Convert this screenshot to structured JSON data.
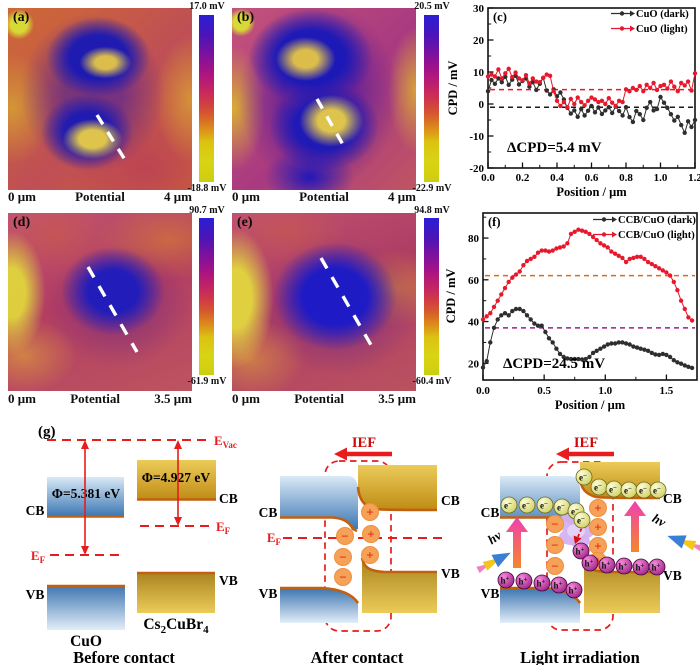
{
  "colors": {
    "accent_red": "#e81c1c",
    "orange_edge": "#c2600f",
    "chart_red": "#e8192c",
    "chart_dark": "#2e2e2e",
    "ref_orange": "#e06a10",
    "ref_purple": "#9a1f8f",
    "colorbar_top": "#2b1fd4",
    "colorbar_bottom": "#ccce10"
  },
  "maps": {
    "a": {
      "label": "(a)",
      "cbar_max": "17.0 mV",
      "cbar_min": "-18.8 mV",
      "x_left": "0 μm",
      "x_mid": "Potential",
      "x_right": "4 μm"
    },
    "b": {
      "label": "(b)",
      "cbar_max": "20.5 mV",
      "cbar_min": "-22.9 mV",
      "x_left": "0 μm",
      "x_mid": "Potential",
      "x_right": "4 μm"
    },
    "d": {
      "label": "(d)",
      "cbar_max": "90.7 mV",
      "cbar_min": "-61.9 mV",
      "x_left": "0 μm",
      "x_mid": "Potential",
      "x_right": "3.5 μm"
    },
    "e": {
      "label": "(e)",
      "cbar_max": "94.8 mV",
      "cbar_min": "-60.4 mV",
      "x_left": "0 μm",
      "x_mid": "Potential",
      "x_right": "3.5 μm"
    }
  },
  "chart_data": [
    {
      "id": "c",
      "type": "line",
      "panel_label": "(c)",
      "xlabel": "Position / μm",
      "ylabel": "CPD / mV",
      "xlim": [
        0,
        1.2
      ],
      "ylim": [
        -20,
        30
      ],
      "xticks": [
        "0.0",
        "0.2",
        "0.4",
        "0.6",
        "0.8",
        "1.0",
        "1.2"
      ],
      "yticks": [
        "-20",
        "-10",
        "0",
        "10",
        "20",
        "30"
      ],
      "xminor": [
        0.1,
        0.3,
        0.5,
        0.7,
        0.9,
        1.1
      ],
      "yminor": [
        -15,
        -5,
        5,
        15,
        25
      ],
      "grid": false,
      "legend_position": "top-right",
      "annotation": "ΔCPD=5.4 mV",
      "ref_lines": [
        {
          "y": 4.5,
          "color": "#e8192c"
        },
        {
          "y": -1,
          "color": "#1a1a1a"
        }
      ],
      "series": [
        {
          "name": "CuO (dark)",
          "color": "#2e2e2e",
          "x_start": 0,
          "x_step": 0.02,
          "y": [
            4.0,
            7.5,
            6.3,
            8.0,
            6.8,
            8.5,
            6.0,
            7.6,
            8.8,
            6.1,
            7.2,
            8.0,
            5.4,
            6.8,
            4.4,
            6.3,
            8.2,
            4.2,
            3.0,
            4.6,
            2.4,
            3.6,
            1.4,
            -1.2,
            -3.0,
            -2.0,
            -4.0,
            -1.6,
            -3.6,
            -2.1,
            -0.6,
            -2.6,
            -1.1,
            -3.1,
            -2.0,
            -1.0,
            -2.8,
            -0.8,
            -2.2,
            -3.6,
            -1.0,
            -4.1,
            -5.6,
            -2.2,
            -3.2,
            -5.0,
            -1.2,
            0.6,
            -2.0,
            -1.6,
            2.2,
            0.4,
            -1.2,
            -3.2,
            -5.2,
            -4.0,
            -6.6,
            -9.0,
            -5.4,
            -7.2,
            -5.0
          ]
        },
        {
          "name": "CuO (light)",
          "color": "#e8192c",
          "x_start": 0,
          "x_step": 0.02,
          "y": [
            8.6,
            9.2,
            8.6,
            10.8,
            8.0,
            9.6,
            11.0,
            8.4,
            9.8,
            8.0,
            7.4,
            9.0,
            6.4,
            8.0,
            7.0,
            6.8,
            8.2,
            9.2,
            8.8,
            4.0,
            1.0,
            -0.6,
            0.6,
            -1.0,
            1.6,
            0.0,
            2.0,
            0.6,
            -0.4,
            1.0,
            2.0,
            1.4,
            0.6,
            1.0,
            0.0,
            1.8,
            0.4,
            -0.6,
            1.0,
            0.6,
            4.6,
            4.0,
            5.0,
            4.4,
            5.6,
            4.0,
            6.0,
            5.0,
            6.6,
            4.4,
            5.6,
            6.0,
            4.8,
            7.0,
            5.4,
            4.0,
            6.6,
            5.8,
            7.0,
            4.2,
            9.6
          ]
        }
      ]
    },
    {
      "id": "f",
      "type": "line",
      "panel_label": "(f)",
      "xlabel": "Position / μm",
      "ylabel": "CPD / mV",
      "xlim": [
        0,
        1.75
      ],
      "ylim": [
        12,
        92
      ],
      "xticks": [
        "0.0",
        "0.5",
        "1.0",
        "1.5"
      ],
      "yticks": [
        "20",
        "40",
        "60",
        "80"
      ],
      "xminor": [
        0.25,
        0.75,
        1.25
      ],
      "yminor": [
        30,
        50,
        70,
        90
      ],
      "grid": false,
      "legend_position": "top-right",
      "annotation": "ΔCPD=24.5 mV",
      "ref_lines": [
        {
          "y": 62,
          "color": "#e06a10"
        },
        {
          "y": 37,
          "color": "#9a1f8f"
        }
      ],
      "series": [
        {
          "name": "CCB/CuO (dark)",
          "color": "#2e2e2e",
          "x_start": 0,
          "x_step": 0.03,
          "y": [
            18,
            21,
            30,
            37,
            41,
            43,
            44,
            43,
            45,
            46,
            46,
            45,
            43,
            41,
            39,
            38,
            38,
            35,
            32,
            30,
            27,
            24.5,
            23,
            22.3,
            22,
            22,
            22,
            21.8,
            22,
            23,
            25,
            26,
            27,
            28,
            29,
            29.5,
            29.5,
            30,
            30,
            29.5,
            29,
            28,
            27.5,
            27,
            26.5,
            26,
            25,
            24.2,
            24,
            24.5,
            24,
            23,
            21.5,
            20.5,
            19.8,
            19,
            18.3,
            17.8
          ]
        },
        {
          "name": "CCB/CuO (light)",
          "color": "#e8192c",
          "x_start": 0,
          "x_step": 0.03,
          "y": [
            41,
            42.5,
            44,
            47,
            50,
            53,
            56,
            59,
            61,
            62.5,
            64,
            67,
            69,
            70,
            71,
            73,
            74,
            74,
            73.5,
            74,
            75,
            75.5,
            76,
            77.5,
            82,
            83,
            84,
            83.5,
            83,
            82,
            80.5,
            79,
            77.5,
            76.5,
            75.5,
            73.5,
            72.5,
            71.5,
            70.5,
            68.5,
            70,
            70.5,
            71,
            71,
            70,
            68.5,
            67.5,
            66.5,
            65.5,
            64.5,
            63.5,
            62,
            59,
            55,
            50,
            46,
            42,
            40.5
          ]
        }
      ]
    }
  ],
  "g": {
    "label": "(g)",
    "evac": {
      "main": "E",
      "sub": "Vac"
    },
    "ef": {
      "main": "E",
      "sub": "F"
    },
    "phi_left": "Φ=5.381 eV",
    "phi_right": "Φ=4.927 eV",
    "cb": "CB",
    "vb": "VB",
    "ief": "IEF",
    "plus": "+",
    "minus": "−",
    "electron": {
      "main": "e",
      "sup": "−"
    },
    "hole": {
      "main": "h",
      "sup": "+"
    },
    "hv": "hν",
    "material_left": "CuO",
    "material_right": {
      "p1": "Cs",
      "s1": "2",
      "p2": "CuBr",
      "s2": "4"
    },
    "captions": {
      "before": "Before contact",
      "after": "After contact",
      "light": "Light irradiation"
    }
  }
}
